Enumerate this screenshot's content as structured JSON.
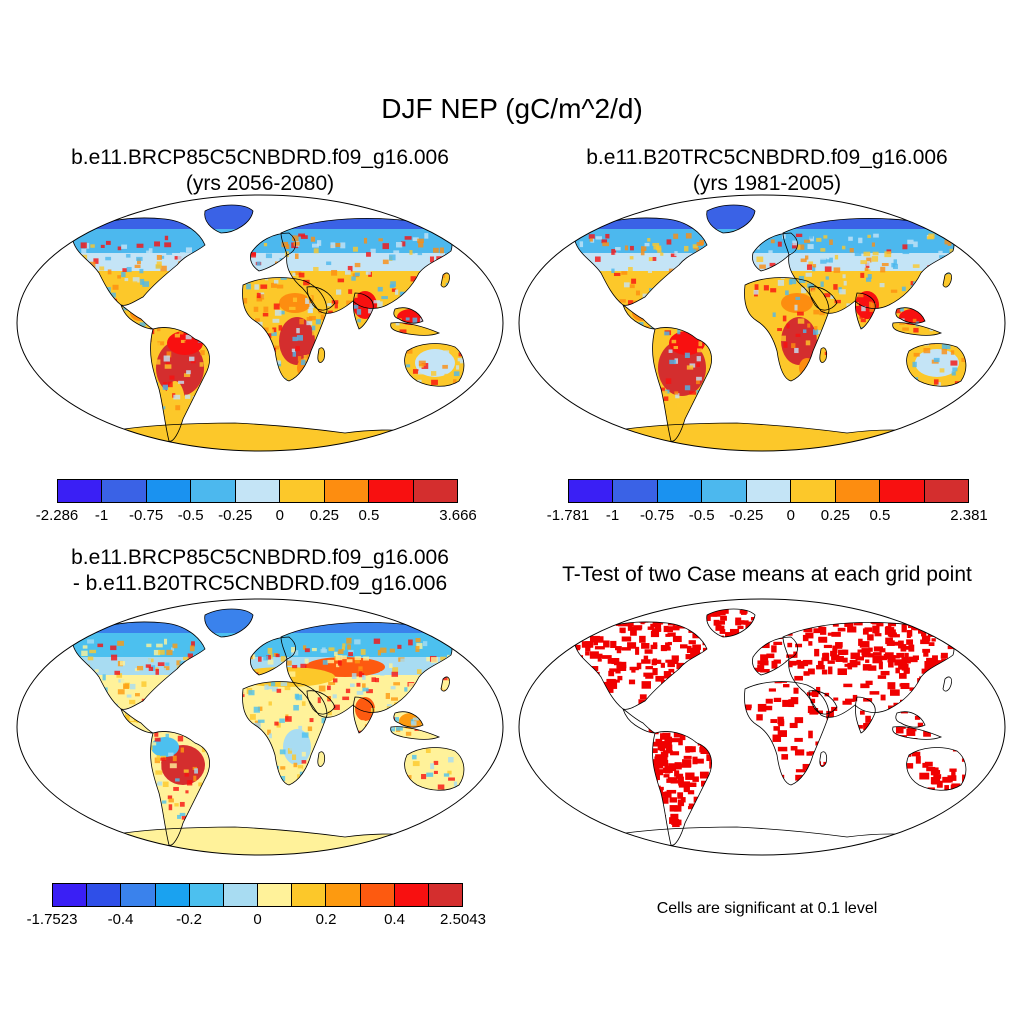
{
  "title": "DJF NEP (gC/m^2/d)",
  "panels": [
    {
      "id": "p1",
      "title_line1": "b.e11.BRCP85C5CNBDRD.f09_g16.006",
      "title_line2": "(yrs 2056-2080)"
    },
    {
      "id": "p2",
      "title_line1": "b.e11.B20TRC5CNBDRD.f09_g16.006",
      "title_line2": "(yrs 1981-2005)"
    },
    {
      "id": "p3",
      "title_line1": "b.e11.BRCP85C5CNBDRD.f09_g16.006",
      "title_line2": "- b.e11.B20TRC5CNBDRD.f09_g16.006"
    },
    {
      "id": "p4",
      "title_line1": "T-Test of two Case means at each grid point",
      "title_line2": ""
    }
  ],
  "colorbars": {
    "cb1": {
      "colors": [
        "#3a1ff5",
        "#3a62e6",
        "#1a92f0",
        "#4cb8ee",
        "#c4e4f6",
        "#fcc82a",
        "#fd8d10",
        "#f81010",
        "#d42e2e"
      ],
      "labels": [
        "-2.286",
        "-1",
        "-0.75",
        "-0.5",
        "-0.25",
        "0",
        "0.25",
        "0.5",
        "",
        "3.666"
      ]
    },
    "cb2": {
      "colors": [
        "#3a1ff5",
        "#3a62e6",
        "#1a92f0",
        "#4cb8ee",
        "#c4e4f6",
        "#fcc82a",
        "#fd8d10",
        "#f81010",
        "#d42e2e"
      ],
      "labels": [
        "-1.781",
        "-1",
        "-0.75",
        "-0.5",
        "-0.25",
        "0",
        "0.25",
        "0.5",
        "",
        "2.381"
      ]
    },
    "cb3": {
      "colors": [
        "#3a1ff5",
        "#2f4fe8",
        "#3a82ec",
        "#1aa2f0",
        "#4cc0ef",
        "#a8dcf2",
        "#fff29a",
        "#fcc82a",
        "#fd9a10",
        "#fd5a10",
        "#f81010",
        "#d42e2e"
      ],
      "labels": [
        "-1.7523",
        "",
        "-0.4",
        "",
        "-0.2",
        "",
        "0",
        "",
        "0.2",
        "",
        "0.4",
        "",
        "2.5043"
      ]
    }
  },
  "significance_note": "Cells are significant at 0.1 level",
  "colors": {
    "ocean": "#ffffff",
    "outline": "#000000",
    "antarctica_future": "#fcc82a",
    "antarctica_diff": "#fff29a",
    "significant": "#f00000"
  }
}
